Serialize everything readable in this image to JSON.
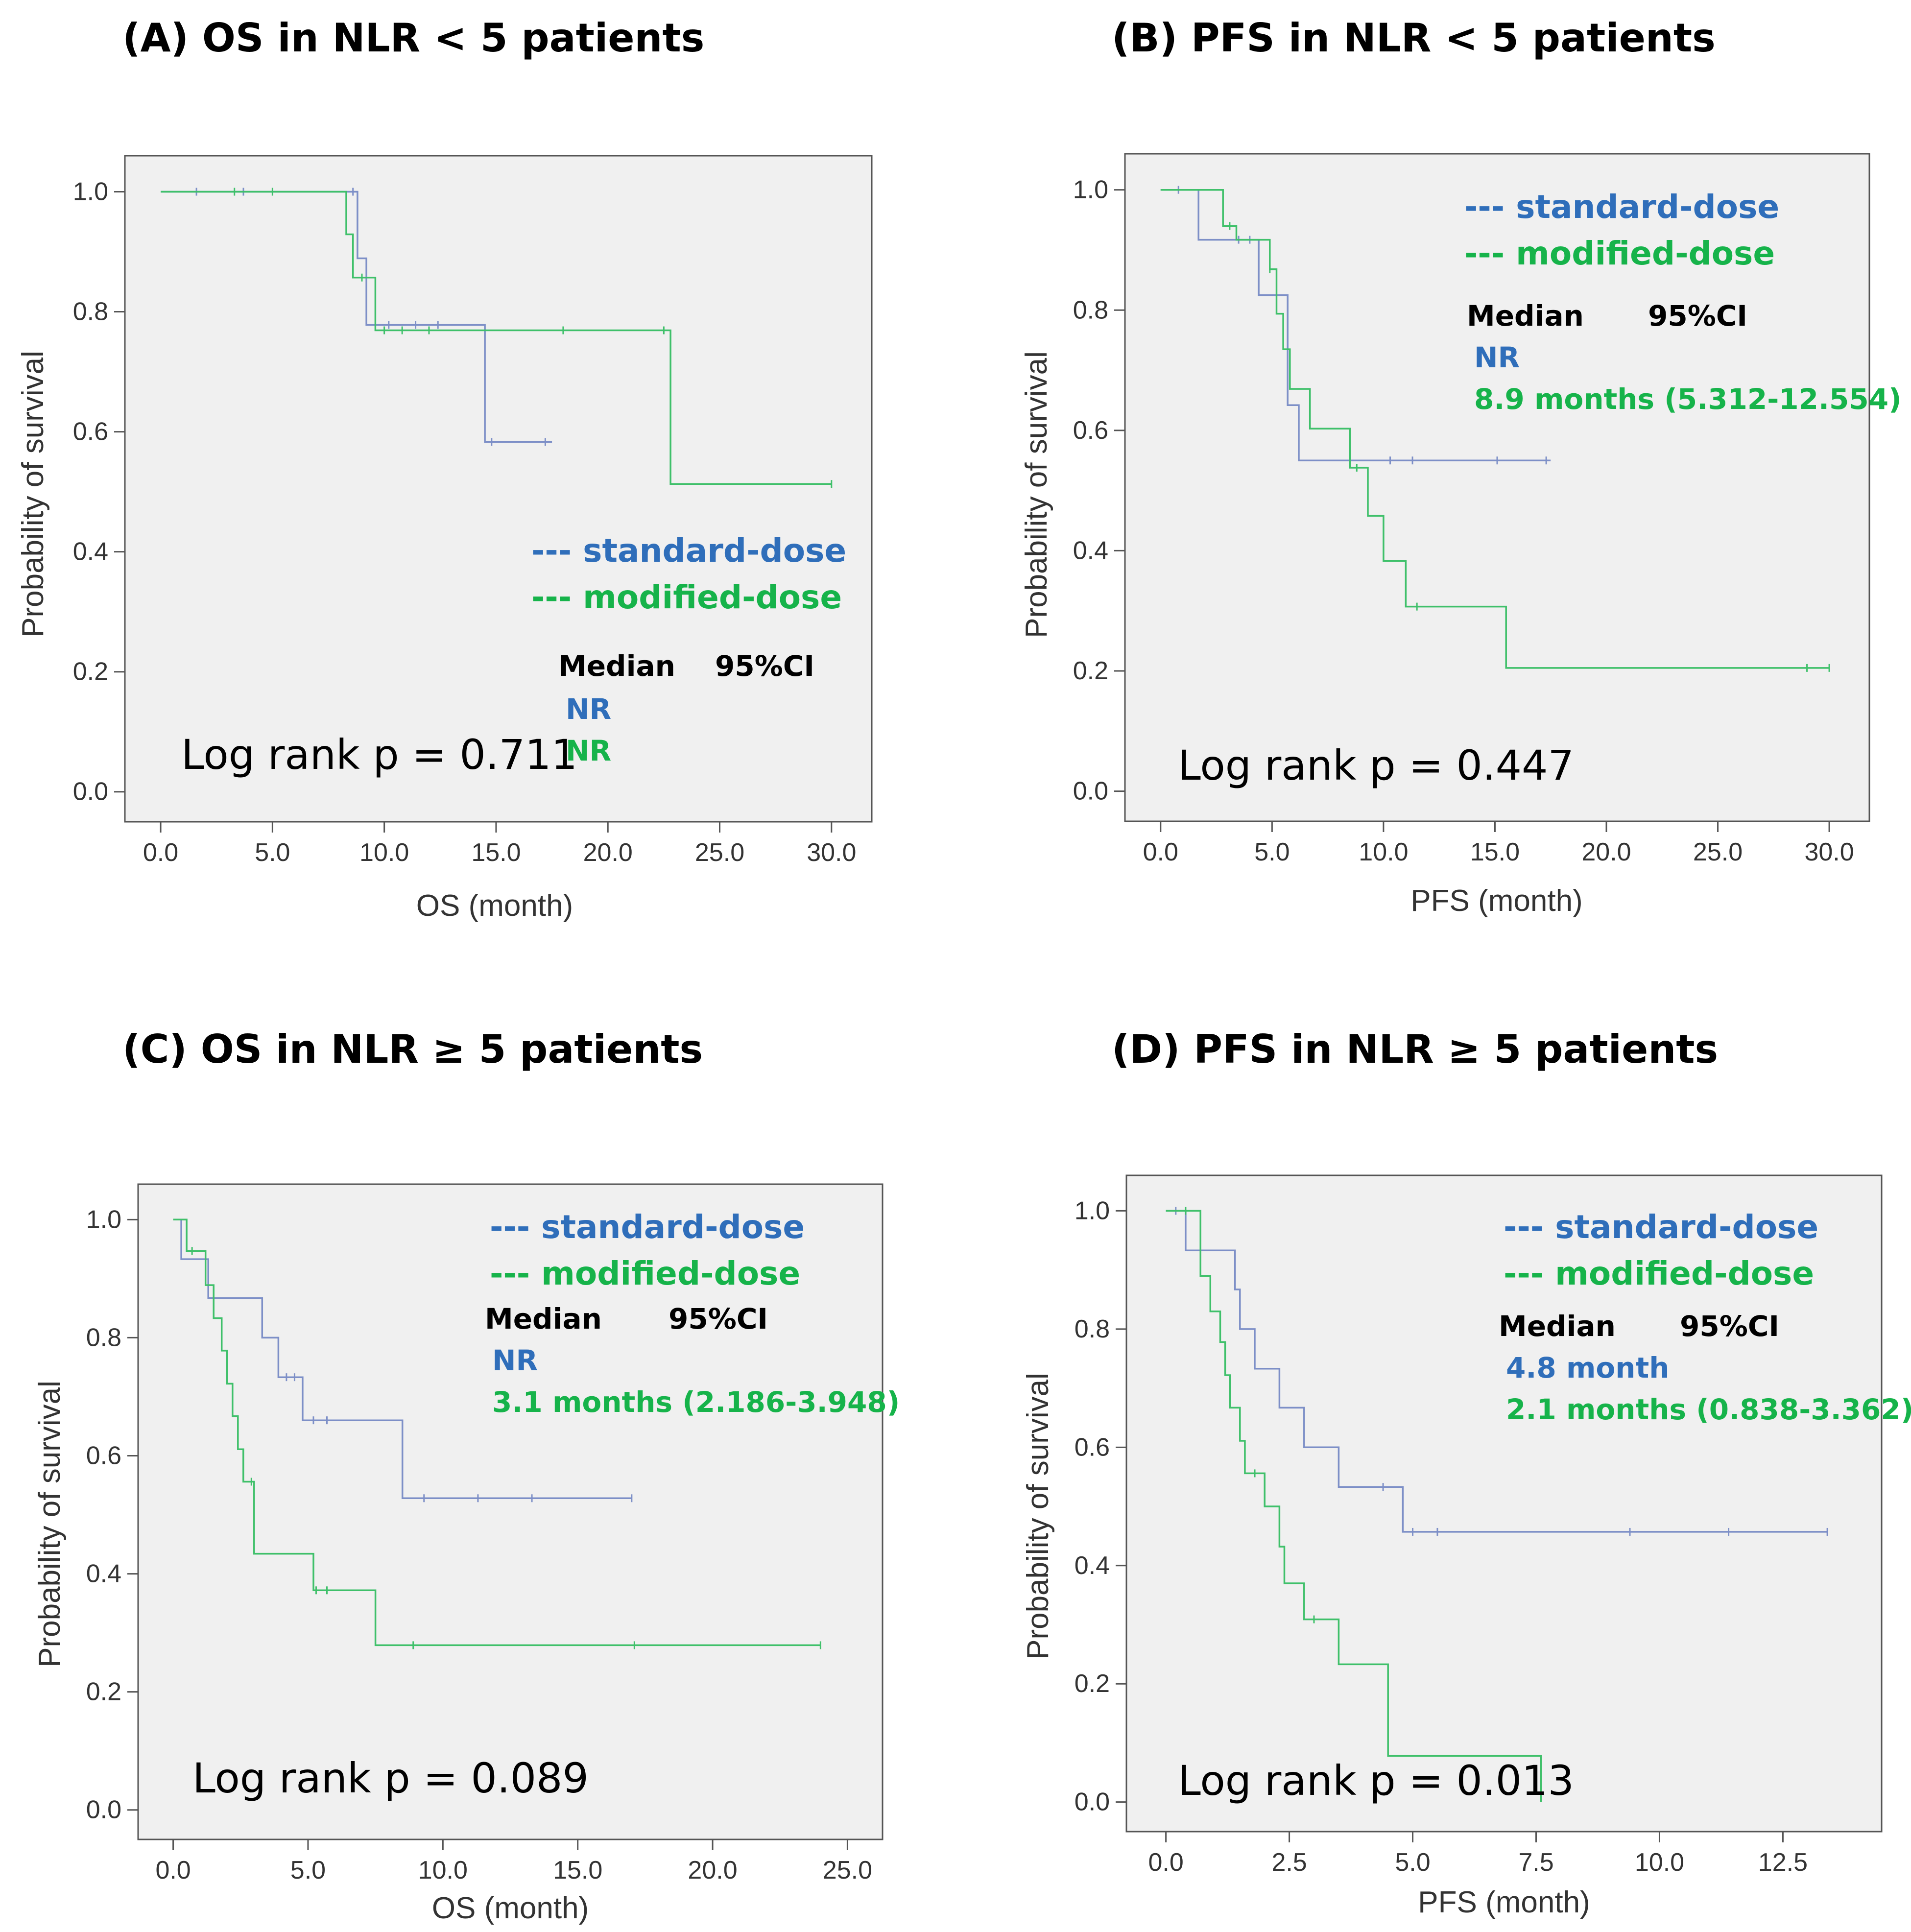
{
  "colors": {
    "standard": "#2F6EBA",
    "modified": "#16B34A",
    "std_curve": "#7D8FC7",
    "mod_curve": "#3FC06A",
    "plot_bg": "#F0F0F0",
    "frame": "#555555"
  },
  "chart_data": [
    {
      "id": "A",
      "type": "line",
      "title": "(A)  OS in NLR < 5 patients",
      "xlabel": "OS (month)",
      "ylabel": "Probability of survival",
      "xlim": [
        -1.6,
        31.8
      ],
      "ylim": [
        -0.05,
        1.06
      ],
      "xticks": [
        0,
        5,
        10,
        15,
        20,
        25,
        30
      ],
      "yticks": [
        0,
        0.2,
        0.4,
        0.6,
        0.8,
        1.0
      ],
      "xtick_labels": [
        "0.0",
        "5.0",
        "10.0",
        "15.0",
        "20.0",
        "25.0",
        "30.0"
      ],
      "ytick_labels": [
        "0.0",
        "0.2",
        "0.4",
        "0.6",
        "0.8",
        "1.0"
      ],
      "legend": [
        "---  standard-dose",
        "---  modified-dose"
      ],
      "median_header": [
        "Median",
        "95%CI"
      ],
      "medians": [
        "NR",
        "NR"
      ],
      "pvalue": "Log rank p = 0.711",
      "series": [
        {
          "name": "standard-dose",
          "steps": [
            [
              0,
              1.0
            ],
            [
              8.8,
              0.889
            ],
            [
              9.2,
              0.778
            ],
            [
              14.5,
              0.583
            ],
            [
              17.5,
              0.583
            ]
          ],
          "censors": [
            [
              1.6,
              1.0
            ],
            [
              3.7,
              1.0
            ],
            [
              8.6,
              1.0
            ],
            [
              10.2,
              0.778
            ],
            [
              11.4,
              0.778
            ],
            [
              12.4,
              0.778
            ],
            [
              14.8,
              0.583
            ],
            [
              17.2,
              0.583
            ]
          ]
        },
        {
          "name": "modified-dose",
          "steps": [
            [
              0,
              1.0
            ],
            [
              8.3,
              0.929
            ],
            [
              8.6,
              0.857
            ],
            [
              9.6,
              0.769
            ],
            [
              22.8,
              0.513
            ],
            [
              30.0,
              0.513
            ]
          ],
          "censors": [
            [
              3.3,
              1.0
            ],
            [
              5.0,
              1.0
            ],
            [
              9.0,
              0.857
            ],
            [
              10.0,
              0.769
            ],
            [
              10.8,
              0.769
            ],
            [
              12.0,
              0.769
            ],
            [
              18.0,
              0.769
            ],
            [
              22.5,
              0.769
            ],
            [
              30.0,
              0.513
            ]
          ]
        }
      ]
    },
    {
      "id": "B",
      "type": "line",
      "title": "(B)  PFS in NLR < 5 patients",
      "xlabel": "PFS (month)",
      "ylabel": "Probability of survival",
      "xlim": [
        -1.6,
        31.8
      ],
      "ylim": [
        -0.05,
        1.06
      ],
      "xticks": [
        0,
        5,
        10,
        15,
        20,
        25,
        30
      ],
      "yticks": [
        0,
        0.2,
        0.4,
        0.6,
        0.8,
        1.0
      ],
      "xtick_labels": [
        "0.0",
        "5.0",
        "10.0",
        "15.0",
        "20.0",
        "25.0",
        "30.0"
      ],
      "ytick_labels": [
        "0.0",
        "0.2",
        "0.4",
        "0.6",
        "0.8",
        "1.0"
      ],
      "legend": [
        "---  standard-dose",
        "---  modified-dose"
      ],
      "median_header": [
        "Median",
        "95%CI"
      ],
      "medians": [
        "NR",
        "8.9 months (5.312-12.554)"
      ],
      "pvalue": "Log rank p = 0.447",
      "series": [
        {
          "name": "standard-dose",
          "steps": [
            [
              0,
              1.0
            ],
            [
              1.7,
              0.917
            ],
            [
              4.4,
              0.825
            ],
            [
              5.7,
              0.642
            ],
            [
              6.2,
              0.55
            ],
            [
              17.5,
              0.55
            ]
          ],
          "censors": [
            [
              0.8,
              1.0
            ],
            [
              3.5,
              0.917
            ],
            [
              4.0,
              0.917
            ],
            [
              8.5,
              0.55
            ],
            [
              10.3,
              0.55
            ],
            [
              11.3,
              0.55
            ],
            [
              15.1,
              0.55
            ],
            [
              17.3,
              0.55
            ]
          ]
        },
        {
          "name": "modified-dose",
          "steps": [
            [
              0,
              1.0
            ],
            [
              2.8,
              0.94
            ],
            [
              3.4,
              0.917
            ],
            [
              4.9,
              0.868
            ],
            [
              5.2,
              0.794
            ],
            [
              5.5,
              0.735
            ],
            [
              5.8,
              0.669
            ],
            [
              6.3,
              0.669
            ],
            [
              6.7,
              0.603
            ],
            [
              8.5,
              0.538
            ],
            [
              9.3,
              0.458
            ],
            [
              10.0,
              0.383
            ],
            [
              11.0,
              0.307
            ],
            [
              15.5,
              0.205
            ],
            [
              30.0,
              0.205
            ]
          ],
          "censors": [
            [
              3.1,
              0.94
            ],
            [
              4.9,
              0.868
            ],
            [
              8.8,
              0.538
            ],
            [
              11.5,
              0.307
            ],
            [
              29.0,
              0.205
            ],
            [
              30.0,
              0.205
            ]
          ]
        }
      ]
    },
    {
      "id": "C",
      "type": "line",
      "title": "(C)  OS in NLR ≥ 5 patients",
      "xlabel": "OS (month)",
      "ylabel": "Probability of survival",
      "xlim": [
        -1.3,
        26.3
      ],
      "ylim": [
        -0.05,
        1.06
      ],
      "xticks": [
        0,
        5,
        10,
        15,
        20,
        25
      ],
      "yticks": [
        0,
        0.2,
        0.4,
        0.6,
        0.8,
        1.0
      ],
      "xtick_labels": [
        "0.0",
        "5.0",
        "10.0",
        "15.0",
        "20.0",
        "25.0"
      ],
      "ytick_labels": [
        "0.0",
        "0.2",
        "0.4",
        "0.6",
        "0.8",
        "1.0"
      ],
      "legend": [
        "---  standard-dose",
        "---  modified-dose"
      ],
      "median_header": [
        "Median",
        "95%CI"
      ],
      "medians": [
        "NR",
        "3.1 months (2.186-3.948)"
      ],
      "pvalue": "Log rank p = 0.089",
      "series": [
        {
          "name": "standard-dose",
          "steps": [
            [
              0,
              1.0
            ],
            [
              0.3,
              0.933
            ],
            [
              1.3,
              0.867
            ],
            [
              3.3,
              0.8
            ],
            [
              3.9,
              0.733
            ],
            [
              4.8,
              0.66
            ],
            [
              8.5,
              0.528
            ],
            [
              17.0,
              0.528
            ]
          ],
          "censors": [
            [
              4.2,
              0.733
            ],
            [
              4.5,
              0.733
            ],
            [
              5.2,
              0.66
            ],
            [
              5.7,
              0.66
            ],
            [
              9.3,
              0.528
            ],
            [
              11.3,
              0.528
            ],
            [
              13.3,
              0.528
            ],
            [
              17.0,
              0.528
            ]
          ]
        },
        {
          "name": "modified-dose",
          "steps": [
            [
              0,
              1.0
            ],
            [
              0.5,
              0.947
            ],
            [
              1.2,
              0.889
            ],
            [
              1.5,
              0.833
            ],
            [
              1.8,
              0.778
            ],
            [
              2.0,
              0.722
            ],
            [
              2.2,
              0.667
            ],
            [
              2.4,
              0.611
            ],
            [
              2.6,
              0.556
            ],
            [
              3.0,
              0.434
            ],
            [
              5.2,
              0.372
            ],
            [
              7.5,
              0.279
            ],
            [
              24.0,
              0.279
            ]
          ],
          "censors": [
            [
              0.7,
              0.947
            ],
            [
              2.9,
              0.556
            ],
            [
              5.3,
              0.372
            ],
            [
              5.7,
              0.372
            ],
            [
              8.9,
              0.279
            ],
            [
              17.1,
              0.279
            ],
            [
              24.0,
              0.279
            ]
          ]
        }
      ]
    },
    {
      "id": "D",
      "type": "line",
      "title": "(D)  PFS in NLR ≥ 5 patients",
      "xlabel": "PFS (month)",
      "ylabel": "Probability of survival",
      "xlim": [
        -0.8,
        14.5
      ],
      "ylim": [
        -0.05,
        1.06
      ],
      "xticks": [
        0,
        2.5,
        5,
        7.5,
        10,
        12.5
      ],
      "yticks": [
        0,
        0.2,
        0.4,
        0.6,
        0.8,
        1.0
      ],
      "xtick_labels": [
        "0.0",
        "2.5",
        "5.0",
        "7.5",
        "10.0",
        "12.5"
      ],
      "ytick_labels": [
        "0.0",
        "0.2",
        "0.4",
        "0.6",
        "0.8",
        "1.0"
      ],
      "legend": [
        "---  standard-dose",
        "---  modified-dose"
      ],
      "median_header": [
        "Median",
        "95%CI"
      ],
      "medians": [
        "4.8 month",
        "2.1 months (0.838-3.362)"
      ],
      "pvalue": "Log rank p = 0.013",
      "series": [
        {
          "name": "standard-dose",
          "steps": [
            [
              0,
              1.0
            ],
            [
              0.4,
              0.933
            ],
            [
              1.4,
              0.867
            ],
            [
              1.5,
              0.8
            ],
            [
              1.8,
              0.733
            ],
            [
              2.3,
              0.667
            ],
            [
              2.8,
              0.6
            ],
            [
              3.5,
              0.533
            ],
            [
              4.8,
              0.457
            ],
            [
              13.4,
              0.457
            ]
          ],
          "censors": [
            [
              0.2,
              1.0
            ],
            [
              4.4,
              0.533
            ],
            [
              5.0,
              0.457
            ],
            [
              5.5,
              0.457
            ],
            [
              9.4,
              0.457
            ],
            [
              11.4,
              0.457
            ],
            [
              13.4,
              0.457
            ]
          ]
        },
        {
          "name": "modified-dose",
          "steps": [
            [
              0,
              1.0
            ],
            [
              0.7,
              0.89
            ],
            [
              0.9,
              0.83
            ],
            [
              1.1,
              0.778
            ],
            [
              1.2,
              0.722
            ],
            [
              1.3,
              0.667
            ],
            [
              1.5,
              0.611
            ],
            [
              1.6,
              0.556
            ],
            [
              2.0,
              0.5
            ],
            [
              2.3,
              0.432
            ],
            [
              2.4,
              0.37
            ],
            [
              2.8,
              0.309
            ],
            [
              3.5,
              0.233
            ],
            [
              4.5,
              0.078
            ],
            [
              7.6,
              0.078
            ],
            [
              7.6,
              0.0
            ]
          ],
          "censors": [
            [
              0.4,
              1.0
            ],
            [
              1.8,
              0.556
            ],
            [
              3.0,
              0.309
            ]
          ]
        }
      ]
    }
  ]
}
